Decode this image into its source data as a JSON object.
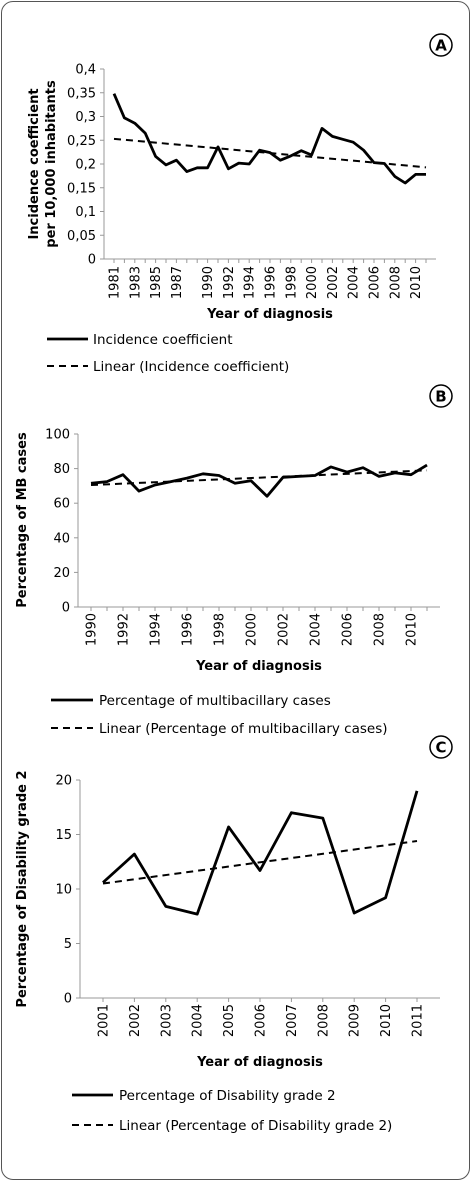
{
  "chart_data": [
    {
      "panel": "A",
      "type": "line",
      "xlabel": "Year of diagnosis",
      "ylabel": [
        "Incidence coefficient",
        "per 10,000 inhabitants"
      ],
      "ylim": [
        0,
        0.4
      ],
      "yticks": [
        "0",
        "0,05",
        "0,1",
        "0,15",
        "0,2",
        "0,25",
        "0,3",
        "0,35",
        "0,4"
      ],
      "x": [
        1981,
        1982,
        1983,
        1984,
        1985,
        1986,
        1987,
        1988,
        1989,
        1990,
        1991,
        1992,
        1993,
        1994,
        1995,
        1996,
        1997,
        1998,
        1999,
        2000,
        2001,
        2002,
        2003,
        2004,
        2005,
        2006,
        2007,
        2008,
        2009,
        2010,
        2011
      ],
      "xticks": [
        "1981",
        "1983",
        "1985",
        "1987",
        "1990",
        "1992",
        "1994",
        "1996",
        "1998",
        "2000",
        "2002",
        "2004",
        "2006",
        "2008",
        "2010"
      ],
      "series": [
        {
          "name": "Incidence coefficient",
          "style": "solid",
          "values": [
            0.348,
            0.297,
            0.286,
            0.265,
            0.216,
            0.198,
            0.208,
            0.184,
            0.192,
            0.192,
            0.236,
            0.19,
            0.202,
            0.2,
            0.229,
            0.224,
            0.208,
            0.217,
            0.228,
            0.219,
            0.275,
            0.258,
            0.252,
            0.246,
            0.229,
            0.203,
            0.201,
            0.174,
            0.16,
            0.178,
            0.178
          ]
        },
        {
          "name": "Linear (Incidence coefficient)",
          "style": "dashed",
          "from": 0.253,
          "to": 0.193
        }
      ],
      "legend": [
        "Incidence coefficient",
        "Linear (Incidence coefficient)"
      ],
      "badge": "A"
    },
    {
      "panel": "B",
      "type": "line",
      "xlabel": "Year of diagnosis",
      "ylabel": [
        "Percentage of MB cases"
      ],
      "ylim": [
        0,
        100
      ],
      "yticks": [
        "0",
        "20",
        "40",
        "60",
        "80",
        "100"
      ],
      "x": [
        1990,
        1991,
        1992,
        1993,
        1994,
        1995,
        1996,
        1997,
        1998,
        1999,
        2000,
        2001,
        2002,
        2003,
        2004,
        2005,
        2006,
        2007,
        2008,
        2009,
        2010,
        2011
      ],
      "xticks": [
        "1990",
        "1992",
        "1994",
        "1996",
        "1998",
        "2000",
        "2002",
        "2004",
        "2006",
        "2008",
        "2010"
      ],
      "series": [
        {
          "name": "Percentage of multibacillary cases",
          "style": "solid",
          "values": [
            71.5,
            72.5,
            76.5,
            67,
            70.5,
            72.5,
            74.5,
            77,
            76,
            71.5,
            73,
            64,
            75,
            75.5,
            76,
            81,
            78,
            80.5,
            75.5,
            77.5,
            76.5,
            82
          ]
        },
        {
          "name": "Linear (Percentage of multibacillary cases)",
          "style": "dashed",
          "from": 70.5,
          "to": 79
        }
      ],
      "legend": [
        "Percentage of multibacillary cases",
        "Linear (Percentage of multibacillary cases)"
      ],
      "badge": "B"
    },
    {
      "panel": "C",
      "type": "line",
      "xlabel": "Year of diagnosis",
      "ylabel": [
        "Percentage of Disability grade 2"
      ],
      "ylim": [
        0,
        20
      ],
      "yticks": [
        "0",
        "5",
        "10",
        "15",
        "20"
      ],
      "x": [
        2001,
        2002,
        2003,
        2004,
        2005,
        2006,
        2007,
        2008,
        2009,
        2010,
        2011
      ],
      "xticks": [
        "2001",
        "2002",
        "2003",
        "2004",
        "2005",
        "2006",
        "2007",
        "2008",
        "2009",
        "2010",
        "2011"
      ],
      "series": [
        {
          "name": "Percentage of Disability grade 2",
          "style": "solid",
          "values": [
            10.6,
            13.2,
            8.4,
            7.7,
            15.7,
            11.7,
            17,
            16.5,
            7.8,
            9.2,
            19
          ]
        },
        {
          "name": "Linear (Percentage of Disability grade 2)",
          "style": "dashed",
          "from": 10.5,
          "to": 14.4
        }
      ],
      "legend": [
        "Percentage of Disability grade 2",
        "Linear (Percentage of Disability grade 2)"
      ],
      "badge": "C"
    }
  ]
}
